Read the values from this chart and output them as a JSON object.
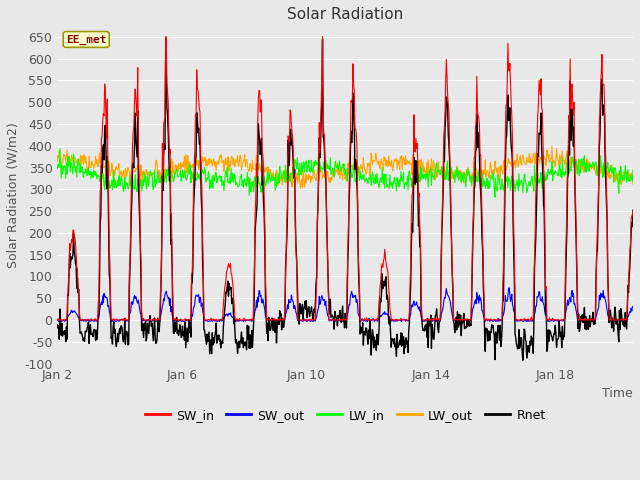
{
  "title": "Solar Radiation",
  "xlabel": "Time",
  "ylabel": "Solar Radiation (W/m2)",
  "ylim": [
    -100,
    675
  ],
  "xlim": [
    1.0,
    19.5
  ],
  "xtick_labels": [
    "Jan 2",
    "Jan 6",
    "Jan 10",
    "Jan 14",
    "Jan 18"
  ],
  "xtick_positions": [
    1,
    5,
    9,
    13,
    17
  ],
  "ytick_step": 50,
  "ymin": -100,
  "ymax": 650,
  "plot_bg_color": "#e8e8e8",
  "fig_bg_color": "#e8e8e8",
  "grid_color": "#ffffff",
  "colors": {
    "SW_in": "#ff0000",
    "SW_out": "#0000ff",
    "LW_in": "#00ff00",
    "LW_out": "#ffa500",
    "Rnet": "#000000"
  },
  "linewidths": {
    "SW_in": 0.8,
    "SW_out": 0.8,
    "LW_in": 0.8,
    "LW_out": 0.8,
    "Rnet": 1.0
  },
  "station_label": "EE_met",
  "seed": 12345,
  "dt_hours": 0.5,
  "start_day": 1.0,
  "end_day": 19.5,
  "day_amps": [
    200,
    510,
    520,
    530,
    525,
    130,
    520,
    440,
    520,
    550,
    150,
    400,
    550,
    480,
    605,
    540,
    540,
    580,
    250
  ],
  "figsize": [
    6.4,
    4.8
  ],
  "dpi": 100
}
